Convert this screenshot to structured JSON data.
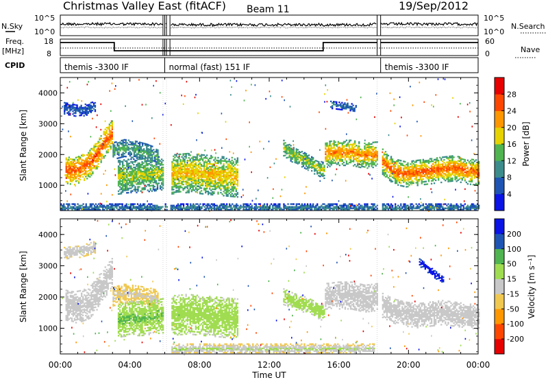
{
  "header": {
    "station": "Christmas Valley East (fitACF)",
    "beam": "Beam 11",
    "date": "19/Sep/2012"
  },
  "top_panels": {
    "nsky_label": "N.Sky",
    "nsky_ticks": [
      "10^5",
      "10^0"
    ],
    "nsearch_label": "N.Search",
    "nsearch_ticks": [
      "10^5",
      "10^0"
    ],
    "freq_label": "Freq.",
    "freq_unit": "[MHz]",
    "freq_ticks": [
      "18",
      "8"
    ],
    "nave_label": "Nave",
    "nave_ticks": [
      "60",
      "0"
    ],
    "cpid_label": "CPID",
    "cpid_segments": [
      {
        "start": 0.0,
        "end": 5.9,
        "label": "themis -3300 IF"
      },
      {
        "start": 6.0,
        "end": 18.2,
        "label": "normal (fast) 151 IF"
      },
      {
        "start": 18.4,
        "end": 24.0,
        "label": "themis -3300 IF"
      }
    ]
  },
  "chart_data": [
    {
      "type": "heatmap",
      "name": "power",
      "ylabel": "Slant Range [km]",
      "ylim": [
        180,
        4500
      ],
      "yticks": [
        1000,
        2000,
        3000,
        4000
      ],
      "xlim": [
        0,
        24
      ],
      "colorbar_label": "Power [dB]",
      "colorbar_ticks": [
        "4",
        "8",
        "12",
        "16",
        "20",
        "24",
        "28"
      ],
      "colorbar_range": [
        0,
        30
      ],
      "colorbar_colors": [
        "#0a14e6",
        "#1e55b4",
        "#3c8c8c",
        "#50b450",
        "#e6d200",
        "#ff9600",
        "#ff4600",
        "#e60000"
      ],
      "data_gaps": [
        [
          5.9,
          6.0
        ],
        [
          6.1,
          6.3
        ],
        [
          18.2,
          18.4
        ]
      ],
      "echo_regions": [
        {
          "x": [
            0.3,
            3.0
          ],
          "center": [
            1500,
            1450,
            1550,
            1700,
            2000,
            2400,
            2700
          ],
          "width": 450,
          "level": [
            14,
            24
          ]
        },
        {
          "x": [
            3.0,
            5.6
          ],
          "center": [
            2100,
            2200,
            2150,
            2050,
            1900
          ],
          "width": 280,
          "level": [
            6,
            12
          ]
        },
        {
          "x": [
            3.3,
            6.0
          ],
          "center": [
            1250,
            1300,
            1300,
            1350,
            1400
          ],
          "width": 550,
          "level": [
            8,
            16
          ]
        },
        {
          "x": [
            6.3,
            10.2
          ],
          "center": [
            1350,
            1400,
            1350,
            1300,
            1250
          ],
          "width": 650,
          "level": [
            10,
            19
          ]
        },
        {
          "x": [
            12.8,
            15.2
          ],
          "center": [
            2200,
            1950,
            1800,
            1600,
            1450
          ],
          "width": 260,
          "level": [
            8,
            16
          ]
        },
        {
          "x": [
            15.2,
            18.2
          ],
          "center": [
            2000,
            2050,
            2050,
            1950,
            2000
          ],
          "width": 420,
          "level": [
            10,
            22
          ]
        },
        {
          "x": [
            15.5,
            17.0
          ],
          "center": [
            3600,
            3550,
            3500
          ],
          "width": 120,
          "level": [
            4,
            8
          ]
        },
        {
          "x": [
            18.4,
            24.0
          ],
          "center": [
            1800,
            1450,
            1350,
            1400,
            1450,
            1500,
            1550,
            1450,
            1400
          ],
          "width": 420,
          "level": [
            10,
            24
          ]
        },
        {
          "x": [
            0.2,
            2.0
          ],
          "center": [
            3500,
            3400,
            3550
          ],
          "width": 200,
          "level": [
            3,
            7
          ]
        },
        {
          "x": [
            0.0,
            24.0
          ],
          "center": [
            250,
            250,
            250,
            250
          ],
          "width": 150,
          "level": [
            3,
            9
          ]
        }
      ]
    },
    {
      "type": "heatmap",
      "name": "velocity",
      "ylabel": "Slant Range [km]",
      "ylim": [
        180,
        4500
      ],
      "yticks": [
        1000,
        2000,
        3000,
        4000
      ],
      "xlim": [
        0,
        24
      ],
      "colorbar_label": "Velocity [m s⁻¹]",
      "colorbar_ticks": [
        "200",
        "100",
        "50",
        "15",
        "-15",
        "-50",
        "-100",
        "-200"
      ],
      "colorbar_range": [
        -250,
        250
      ],
      "colorbar_colors": [
        "#e60000",
        "#ff4600",
        "#ff9600",
        "#f0c850",
        "#c8c8c8",
        "#a0dc50",
        "#50b450",
        "#1e55b4",
        "#0a14e6"
      ],
      "data_gaps": [
        [
          5.9,
          6.0
        ],
        [
          6.1,
          6.3
        ],
        [
          18.2,
          18.4
        ]
      ],
      "echo_regions": [
        {
          "x": [
            0.3,
            3.0
          ],
          "center": [
            1700,
            1650,
            1700,
            1800,
            2100,
            2500,
            2800
          ],
          "width": 500,
          "level": [
            -10,
            10
          ]
        },
        {
          "x": [
            3.0,
            5.6
          ],
          "center": [
            2000,
            2100,
            2050,
            2000,
            1900
          ],
          "width": 300,
          "level": [
            -60,
            -20
          ]
        },
        {
          "x": [
            3.3,
            6.0
          ],
          "center": [
            1250,
            1300,
            1300,
            1350,
            1400
          ],
          "width": 550,
          "level": [
            30,
            90
          ]
        },
        {
          "x": [
            6.3,
            10.2
          ],
          "center": [
            1400,
            1450,
            1400,
            1350,
            1300
          ],
          "width": 650,
          "level": [
            30,
            70
          ]
        },
        {
          "x": [
            12.8,
            15.2
          ],
          "center": [
            2000,
            1850,
            1750,
            1600,
            1450
          ],
          "width": 260,
          "level": [
            20,
            60
          ]
        },
        {
          "x": [
            15.2,
            18.2
          ],
          "center": [
            2000,
            2050,
            2050,
            1950,
            2000
          ],
          "width": 450,
          "level": [
            -10,
            10
          ]
        },
        {
          "x": [
            18.4,
            24.0
          ],
          "center": [
            1750,
            1550,
            1450,
            1400,
            1450,
            1500,
            1450,
            1400,
            1350
          ],
          "width": 400,
          "level": [
            -10,
            10
          ]
        },
        {
          "x": [
            20.6,
            22.0
          ],
          "center": [
            3100,
            2900,
            2700,
            2500
          ],
          "width": 130,
          "level": [
            180,
            240
          ]
        },
        {
          "x": [
            6.3,
            18.0
          ],
          "center": [
            320,
            320,
            320,
            320
          ],
          "width": 160,
          "level": [
            -60,
            40
          ]
        },
        {
          "x": [
            0.2,
            2.0
          ],
          "center": [
            3400,
            3450,
            3600
          ],
          "width": 200,
          "level": [
            -40,
            20
          ]
        }
      ]
    }
  ],
  "x_axis": {
    "ticks": [
      "00:00",
      "04:00",
      "08:00",
      "12:00",
      "16:00",
      "20:00",
      "00:00"
    ],
    "tick_hours": [
      0,
      4,
      8,
      12,
      16,
      20,
      24
    ],
    "label": "Time UT"
  }
}
